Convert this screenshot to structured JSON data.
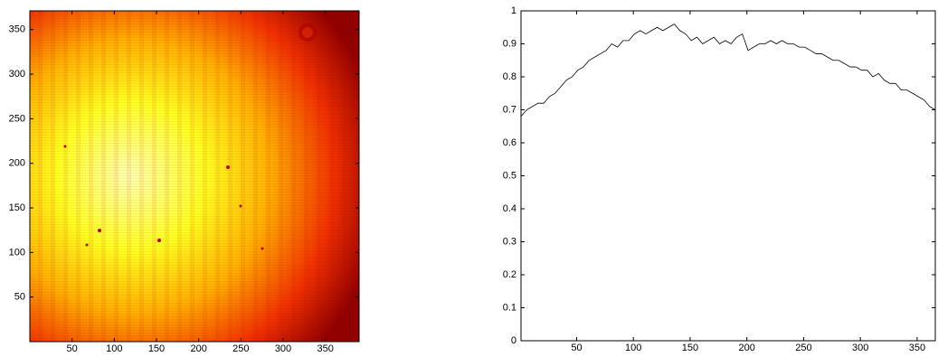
{
  "chart_data": [
    {
      "type": "heatmap",
      "xlim": [
        0,
        390
      ],
      "ylim": [
        0,
        371
      ],
      "xticks": [
        50,
        100,
        150,
        200,
        250,
        300,
        350
      ],
      "yticks": [
        50,
        100,
        150,
        200,
        250,
        300,
        350
      ]
    },
    {
      "type": "line",
      "color": "#000000",
      "x": [
        1,
        6,
        11,
        16,
        21,
        26,
        31,
        36,
        41,
        46,
        51,
        56,
        61,
        66,
        71,
        76,
        81,
        86,
        91,
        96,
        101,
        106,
        111,
        116,
        121,
        126,
        131,
        136,
        141,
        146,
        151,
        156,
        161,
        166,
        171,
        176,
        181,
        186,
        191,
        196,
        201,
        206,
        211,
        216,
        221,
        226,
        231,
        236,
        241,
        246,
        251,
        256,
        261,
        266,
        271,
        276,
        281,
        286,
        291,
        296,
        301,
        306,
        311,
        316,
        321,
        326,
        331,
        336,
        341,
        346,
        351,
        356,
        361,
        366
      ],
      "values": [
        0.68,
        0.7,
        0.71,
        0.72,
        0.72,
        0.74,
        0.75,
        0.77,
        0.79,
        0.8,
        0.82,
        0.83,
        0.85,
        0.86,
        0.87,
        0.88,
        0.9,
        0.89,
        0.91,
        0.91,
        0.93,
        0.94,
        0.93,
        0.94,
        0.95,
        0.94,
        0.95,
        0.96,
        0.94,
        0.93,
        0.91,
        0.92,
        0.9,
        0.91,
        0.92,
        0.9,
        0.91,
        0.9,
        0.92,
        0.93,
        0.88,
        0.89,
        0.9,
        0.9,
        0.91,
        0.9,
        0.91,
        0.9,
        0.9,
        0.89,
        0.89,
        0.88,
        0.87,
        0.87,
        0.86,
        0.85,
        0.85,
        0.84,
        0.83,
        0.83,
        0.82,
        0.82,
        0.8,
        0.81,
        0.79,
        0.78,
        0.78,
        0.76,
        0.76,
        0.75,
        0.74,
        0.73,
        0.71,
        0.7
      ],
      "xlim": [
        1,
        366
      ],
      "ylim": [
        0,
        1
      ],
      "xticks": [
        50,
        100,
        150,
        200,
        250,
        300,
        350
      ],
      "yticks": [
        0,
        0.1,
        0.2,
        0.3,
        0.4,
        0.5,
        0.6,
        0.7,
        0.8,
        0.9,
        1
      ]
    }
  ]
}
